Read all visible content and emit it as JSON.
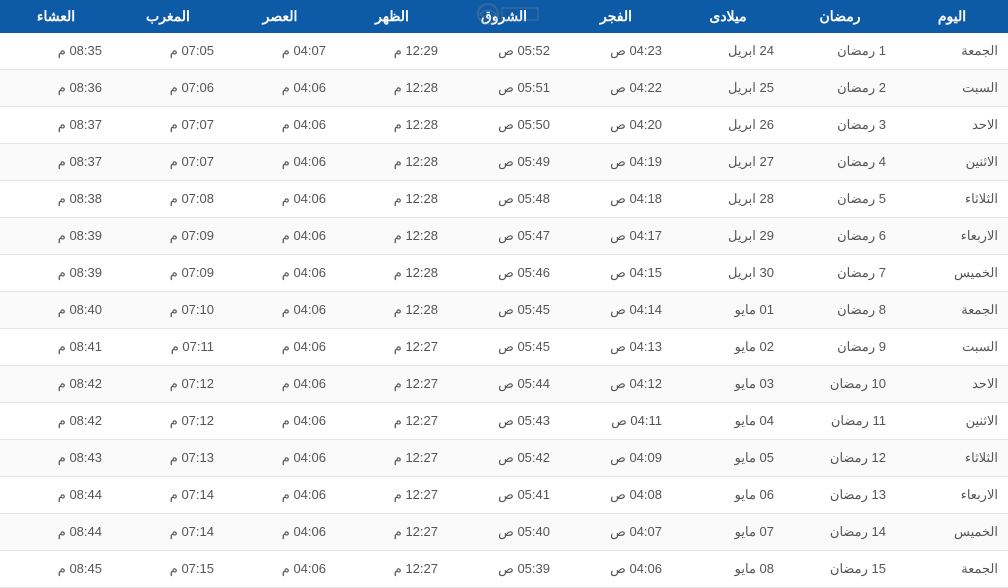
{
  "table": {
    "header_bg": "#0d5aa7",
    "header_fg": "#ffffff",
    "row_border": "#e5e5e5",
    "cell_fg": "#555555",
    "columns": [
      "اليوم",
      "رمضان",
      "ميلادى",
      "الفجر",
      "الشروق",
      "الظهر",
      "العصر",
      "المغرب",
      "العشاء"
    ],
    "rows": [
      [
        "الجمعة",
        "1 رمضان",
        "24 ابريل",
        "04:23 ص",
        "05:52 ص",
        "12:29 م",
        "04:07 م",
        "07:05 م",
        "08:35 م"
      ],
      [
        "السبت",
        "2 رمضان",
        "25 ابريل",
        "04:22 ص",
        "05:51 ص",
        "12:28 م",
        "04:06 م",
        "07:06 م",
        "08:36 م"
      ],
      [
        "الاحد",
        "3 رمضان",
        "26 ابريل",
        "04:20 ص",
        "05:50 ص",
        "12:28 م",
        "04:06 م",
        "07:07 م",
        "08:37 م"
      ],
      [
        "الاثنين",
        "4 رمضان",
        "27 ابريل",
        "04:19 ص",
        "05:49 ص",
        "12:28 م",
        "04:06 م",
        "07:07 م",
        "08:37 م"
      ],
      [
        "الثلاثاء",
        "5 رمضان",
        "28 ابريل",
        "04:18 ص",
        "05:48 ص",
        "12:28 م",
        "04:06 م",
        "07:08 م",
        "08:38 م"
      ],
      [
        "الاربعاء",
        "6 رمضان",
        "29 ابريل",
        "04:17 ص",
        "05:47 ص",
        "12:28 م",
        "04:06 م",
        "07:09 م",
        "08:39 م"
      ],
      [
        "الخميس",
        "7 رمضان",
        "30 ابريل",
        "04:15 ص",
        "05:46 ص",
        "12:28 م",
        "04:06 م",
        "07:09 م",
        "08:39 م"
      ],
      [
        "الجمعة",
        "8 رمضان",
        "01 مايو",
        "04:14 ص",
        "05:45 ص",
        "12:28 م",
        "04:06 م",
        "07:10 م",
        "08:40 م"
      ],
      [
        "السبت",
        "9 رمضان",
        "02 مايو",
        "04:13 ص",
        "05:45 ص",
        "12:27 م",
        "04:06 م",
        "07:11 م",
        "08:41 م"
      ],
      [
        "الاحد",
        "10 رمضان",
        "03 مايو",
        "04:12 ص",
        "05:44 ص",
        "12:27 م",
        "04:06 م",
        "07:12 م",
        "08:42 م"
      ],
      [
        "الاثنين",
        "11 رمضان",
        "04 مايو",
        "04:11 ص",
        "05:43 ص",
        "12:27 م",
        "04:06 م",
        "07:12 م",
        "08:42 م"
      ],
      [
        "الثلاثاء",
        "12 رمضان",
        "05 مايو",
        "04:09 ص",
        "05:42 ص",
        "12:27 م",
        "04:06 م",
        "07:13 م",
        "08:43 م"
      ],
      [
        "الاربعاء",
        "13 رمضان",
        "06 مايو",
        "04:08 ص",
        "05:41 ص",
        "12:27 م",
        "04:06 م",
        "07:14 م",
        "08:44 م"
      ],
      [
        "الخميس",
        "14 رمضان",
        "07 مايو",
        "04:07 ص",
        "05:40 ص",
        "12:27 م",
        "04:06 م",
        "07:14 م",
        "08:44 م"
      ],
      [
        "الجمعة",
        "15 رمضان",
        "08 مايو",
        "04:06 ص",
        "05:39 ص",
        "12:27 م",
        "04:06 م",
        "07:15 م",
        "08:45 م"
      ]
    ]
  }
}
